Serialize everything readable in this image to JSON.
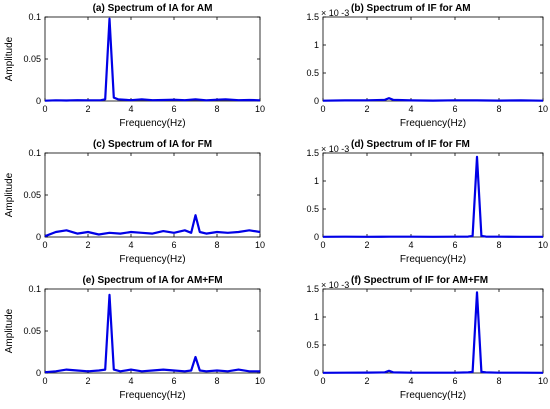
{
  "chart_data": [
    {
      "id": "a",
      "type": "line",
      "title": "(a) Spectrum of IA for AM",
      "xlabel": "Frequency(Hz)",
      "ylabel": "Amplitude",
      "xlim": [
        0,
        10
      ],
      "ylim": [
        0,
        0.1
      ],
      "xticks": [
        "0",
        "2",
        "4",
        "6",
        "8",
        "10"
      ],
      "yticks": [
        "0",
        "0.05",
        "0.1"
      ],
      "multiplier": "",
      "color": "#0000e6",
      "x": [
        0,
        0.5,
        1,
        1.5,
        2,
        2.6,
        2.8,
        3.0,
        3.2,
        3.4,
        4,
        4.5,
        5,
        5.5,
        6,
        6.5,
        7,
        7.5,
        8,
        8.4,
        9,
        9.5,
        10
      ],
      "y": [
        0.0003,
        0.0008,
        0.0006,
        0.001,
        0.0008,
        0.001,
        0.002,
        0.098,
        0.004,
        0.002,
        0.001,
        0.002,
        0.001,
        0.0012,
        0.0015,
        0.001,
        0.002,
        0.0008,
        0.0015,
        0.002,
        0.001,
        0.0012,
        0.0008
      ]
    },
    {
      "id": "b",
      "type": "line",
      "title": "(b) Spectrum of IF for AM",
      "xlabel": "Frequency(Hz)",
      "ylabel": "",
      "xlim": [
        0,
        10
      ],
      "ylim": [
        0,
        0.0015
      ],
      "xticks": [
        "0",
        "2",
        "4",
        "6",
        "8",
        "10"
      ],
      "yticks": [
        "0",
        "0.5",
        "1",
        "1.5"
      ],
      "multiplier": "× 10 -3",
      "color": "#0000e6",
      "x": [
        0,
        1,
        2,
        2.8,
        3.0,
        3.2,
        4,
        5,
        6,
        7,
        8,
        9,
        10
      ],
      "y": [
        5e-06,
        1e-05,
        1.2e-05,
        2e-05,
        5e-05,
        2e-05,
        1e-05,
        8e-06,
        1.2e-05,
        1e-05,
        8e-06,
        1e-05,
        6e-06
      ]
    },
    {
      "id": "c",
      "type": "line",
      "title": "(c) Spectrum of IA for FM",
      "xlabel": "Frequency(Hz)",
      "ylabel": "Amplitude",
      "xlim": [
        0,
        10
      ],
      "ylim": [
        0,
        0.1
      ],
      "xticks": [
        "0",
        "2",
        "4",
        "6",
        "8",
        "10"
      ],
      "yticks": [
        "0",
        "0.05",
        "0.1"
      ],
      "multiplier": "",
      "color": "#0000e6",
      "x": [
        0,
        0.5,
        1,
        1.5,
        2,
        2.5,
        3,
        3.5,
        4,
        4.5,
        5,
        5.5,
        6,
        6.5,
        6.8,
        7.0,
        7.2,
        7.5,
        8,
        8.5,
        9,
        9.5,
        10
      ],
      "y": [
        0.001,
        0.006,
        0.008,
        0.004,
        0.006,
        0.003,
        0.005,
        0.004,
        0.006,
        0.005,
        0.004,
        0.007,
        0.005,
        0.008,
        0.005,
        0.026,
        0.006,
        0.004,
        0.006,
        0.005,
        0.006,
        0.008,
        0.006
      ]
    },
    {
      "id": "d",
      "type": "line",
      "title": "(d) Spectrum of IF for FM",
      "xlabel": "Frequency(Hz)",
      "ylabel": "",
      "xlim": [
        0,
        10
      ],
      "ylim": [
        0,
        0.0015
      ],
      "xticks": [
        "0",
        "2",
        "4",
        "6",
        "8",
        "10"
      ],
      "yticks": [
        "0",
        "0.5",
        "1",
        "1.5"
      ],
      "multiplier": "× 10 -3",
      "color": "#0000e6",
      "x": [
        0,
        1,
        2,
        3,
        4,
        5,
        6,
        6.6,
        6.8,
        7.0,
        7.2,
        7.4,
        8,
        9,
        10
      ],
      "y": [
        3e-06,
        5e-06,
        4e-06,
        6e-06,
        5e-06,
        4e-06,
        5e-06,
        8e-06,
        2e-05,
        0.00143,
        2e-05,
        8e-06,
        5e-06,
        4e-06,
        3e-06
      ]
    },
    {
      "id": "e",
      "type": "line",
      "title": "(e) Spectrum of IA for AM+FM",
      "xlabel": "Frequency(Hz)",
      "ylabel": "Amplitude",
      "xlim": [
        0,
        10
      ],
      "ylim": [
        0,
        0.1
      ],
      "xticks": [
        "0",
        "2",
        "4",
        "6",
        "8",
        "10"
      ],
      "yticks": [
        "0",
        "0.05",
        "0.1"
      ],
      "multiplier": "",
      "color": "#0000e6",
      "x": [
        0,
        0.5,
        1,
        1.5,
        2,
        2.5,
        2.8,
        3.0,
        3.2,
        3.5,
        4,
        4.5,
        5,
        5.5,
        6,
        6.5,
        6.8,
        7.0,
        7.2,
        7.5,
        8,
        8.5,
        9,
        9.5,
        10
      ],
      "y": [
        0.001,
        0.002,
        0.004,
        0.003,
        0.002,
        0.003,
        0.004,
        0.093,
        0.004,
        0.002,
        0.004,
        0.002,
        0.003,
        0.004,
        0.003,
        0.002,
        0.003,
        0.019,
        0.003,
        0.002,
        0.003,
        0.002,
        0.004,
        0.002,
        0.002
      ]
    },
    {
      "id": "f",
      "type": "line",
      "title": "(f) Spectrum of IF for AM+FM",
      "xlabel": "Frequency(Hz)",
      "ylabel": "",
      "xlim": [
        0,
        10
      ],
      "ylim": [
        0,
        0.0015
      ],
      "xticks": [
        "0",
        "2",
        "4",
        "6",
        "8",
        "10"
      ],
      "yticks": [
        "0",
        "0.5",
        "1",
        "1.5"
      ],
      "multiplier": "× 10 -3",
      "color": "#0000e6",
      "x": [
        0,
        1,
        2,
        2.8,
        3.0,
        3.2,
        4,
        5,
        6,
        6.6,
        6.8,
        7.0,
        7.2,
        7.4,
        8,
        9,
        10
      ],
      "y": [
        4e-06,
        6e-06,
        8e-06,
        1e-05,
        4e-05,
        1e-05,
        6e-06,
        5e-06,
        6e-06,
        1e-05,
        2e-05,
        0.00144,
        2e-05,
        1e-05,
        6e-06,
        5e-06,
        4e-06
      ]
    }
  ]
}
